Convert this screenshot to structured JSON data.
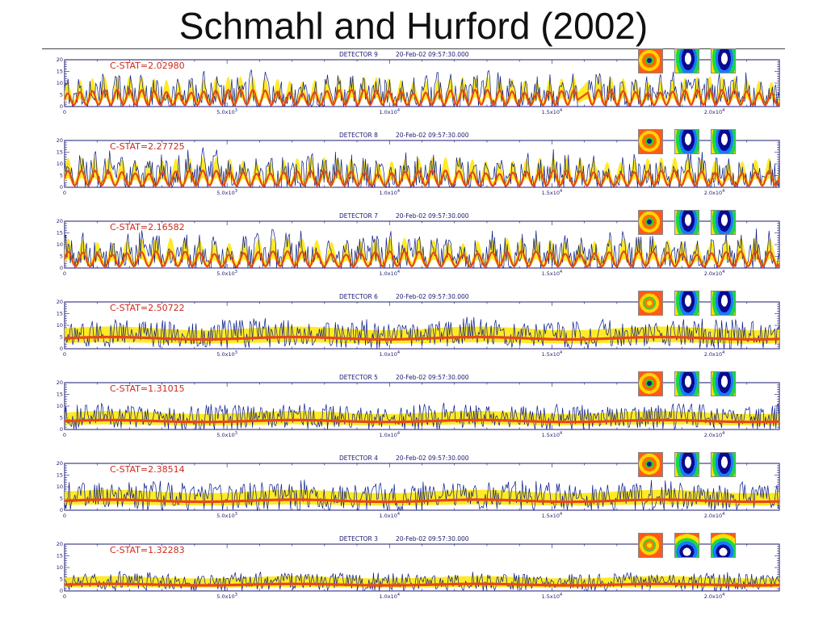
{
  "slide": {
    "title": "Schmahl and Hurford (2002)"
  },
  "colors": {
    "data": "#0a1a88",
    "model_band": "#ffe600",
    "model": "#e8481a",
    "axis": "#1a1a70",
    "stat": "#cc2a1a"
  },
  "chart_data": [
    {
      "type": "line",
      "title": "DETECTOR 9",
      "timestamp": "20-Feb-02 09:57:30.000",
      "annotation": "C-STAT=2.02980",
      "xlim": [
        0,
        22000
      ],
      "ylim": [
        0,
        20
      ],
      "x_ticks": [
        0,
        5000,
        10000,
        15000,
        20000
      ],
      "x_tick_labels": [
        "0",
        "5.0x10^3",
        "1.0x10^4",
        "1.5x10^4",
        "2.0x10^4"
      ],
      "y_ticks": [
        0,
        5,
        10,
        15,
        20
      ],
      "y_tick_labels": [
        "0",
        "5",
        "10",
        "15",
        "20"
      ],
      "model_shape": "modulated",
      "model_level": 6,
      "data_level": 9,
      "gaps": [
        [
          15800,
          16100
        ]
      ],
      "modulation_maps": [
        "ring",
        "oval",
        "oval"
      ]
    },
    {
      "type": "line",
      "title": "DETECTOR 8",
      "timestamp": "20-Feb-02 09:57:30.000",
      "annotation": "C-STAT=2.27725",
      "xlim": [
        0,
        22000
      ],
      "ylim": [
        0,
        20
      ],
      "x_ticks": [
        0,
        5000,
        10000,
        15000,
        20000
      ],
      "x_tick_labels": [
        "0",
        "5.0x10^3",
        "1.0x10^4",
        "1.5x10^4",
        "2.0x10^4"
      ],
      "y_ticks": [
        0,
        5,
        10,
        15,
        20
      ],
      "y_tick_labels": [
        "0",
        "5",
        "10",
        "15",
        "20"
      ],
      "model_shape": "modulated",
      "model_level": 6,
      "data_level": 9,
      "gaps": [],
      "modulation_maps": [
        "ring",
        "oval",
        "oval"
      ]
    },
    {
      "type": "line",
      "title": "DETECTOR 7",
      "timestamp": "20-Feb-02 09:57:30.000",
      "annotation": "C-STAT=2.16582",
      "xlim": [
        0,
        22000
      ],
      "ylim": [
        0,
        20
      ],
      "x_ticks": [
        0,
        5000,
        10000,
        15000,
        20000
      ],
      "x_tick_labels": [
        "0",
        "5.0x10^3",
        "1.0x10^4",
        "1.5x10^4",
        "2.0x10^4"
      ],
      "y_ticks": [
        0,
        5,
        10,
        15,
        20
      ],
      "y_tick_labels": [
        "0",
        "5",
        "10",
        "15",
        "20"
      ],
      "model_shape": "modulated",
      "model_level": 6,
      "data_level": 9,
      "gaps": [],
      "modulation_maps": [
        "ring",
        "oval",
        "oval"
      ]
    },
    {
      "type": "line",
      "title": "DETECTOR 6",
      "timestamp": "20-Feb-02 09:57:30.000",
      "annotation": "C-STAT=2.50722",
      "xlim": [
        0,
        22000
      ],
      "ylim": [
        0,
        20
      ],
      "x_ticks": [
        0,
        5000,
        10000,
        15000,
        20000
      ],
      "x_tick_labels": [
        "0",
        "5.0x10^3",
        "1.0x10^4",
        "1.5x10^4",
        "2.0x10^4"
      ],
      "y_ticks": [
        0,
        5,
        10,
        15,
        20
      ],
      "y_tick_labels": [
        "0",
        "5",
        "10",
        "15",
        "20"
      ],
      "model_shape": "flat",
      "model_level": 5,
      "data_level": 8,
      "gaps": [],
      "modulation_maps": [
        "ring-soft",
        "oval",
        "oval"
      ]
    },
    {
      "type": "line",
      "title": "DETECTOR 5",
      "timestamp": "20-Feb-02 09:57:30.000",
      "annotation": "C-STAT=1.31015",
      "xlim": [
        0,
        22000
      ],
      "ylim": [
        0,
        20
      ],
      "x_ticks": [
        0,
        5000,
        10000,
        15000,
        20000
      ],
      "x_tick_labels": [
        "0",
        "5.0x10^3",
        "1.0x10^4",
        "1.5x10^4",
        "2.0x10^4"
      ],
      "y_ticks": [
        0,
        5,
        10,
        15,
        20
      ],
      "y_tick_labels": [
        "0",
        "5",
        "10",
        "15",
        "20"
      ],
      "model_shape": "flat",
      "model_level": 4,
      "data_level": 7,
      "gaps": [],
      "modulation_maps": [
        "ring",
        "oval",
        "oval"
      ]
    },
    {
      "type": "line",
      "title": "DETECTOR 4",
      "timestamp": "20-Feb-02 09:57:30.000",
      "annotation": "C-STAT=2.38514",
      "xlim": [
        0,
        22000
      ],
      "ylim": [
        0,
        20
      ],
      "x_ticks": [
        0,
        5000,
        10000,
        15000,
        20000
      ],
      "x_tick_labels": [
        "0",
        "5.0x10^3",
        "1.0x10^4",
        "1.5x10^4",
        "2.0x10^4"
      ],
      "y_ticks": [
        0,
        5,
        10,
        15,
        20
      ],
      "y_tick_labels": [
        "0",
        "5",
        "10",
        "15",
        "20"
      ],
      "model_shape": "flat",
      "model_level": 4.5,
      "data_level": 8,
      "gaps": [],
      "modulation_maps": [
        "ring",
        "oval",
        "oval"
      ]
    },
    {
      "type": "line",
      "title": "DETECTOR 3",
      "timestamp": "20-Feb-02 09:57:30.000",
      "annotation": "C-STAT=1.32283",
      "xlim": [
        0,
        22000
      ],
      "ylim": [
        0,
        20
      ],
      "x_ticks": [
        0,
        5000,
        10000,
        15000,
        20000
      ],
      "x_tick_labels": [
        "0",
        "5.0x10^3",
        "1.0x10^4",
        "1.5x10^4",
        "2.0x10^4"
      ],
      "y_ticks": [
        0,
        5,
        10,
        15,
        20
      ],
      "y_tick_labels": [
        "0",
        "5",
        "10",
        "15",
        "20"
      ],
      "model_shape": "flat",
      "model_level": 3,
      "data_level": 5,
      "gaps": [],
      "modulation_maps": [
        "ring-soft",
        "gradient",
        "gradient"
      ]
    }
  ]
}
